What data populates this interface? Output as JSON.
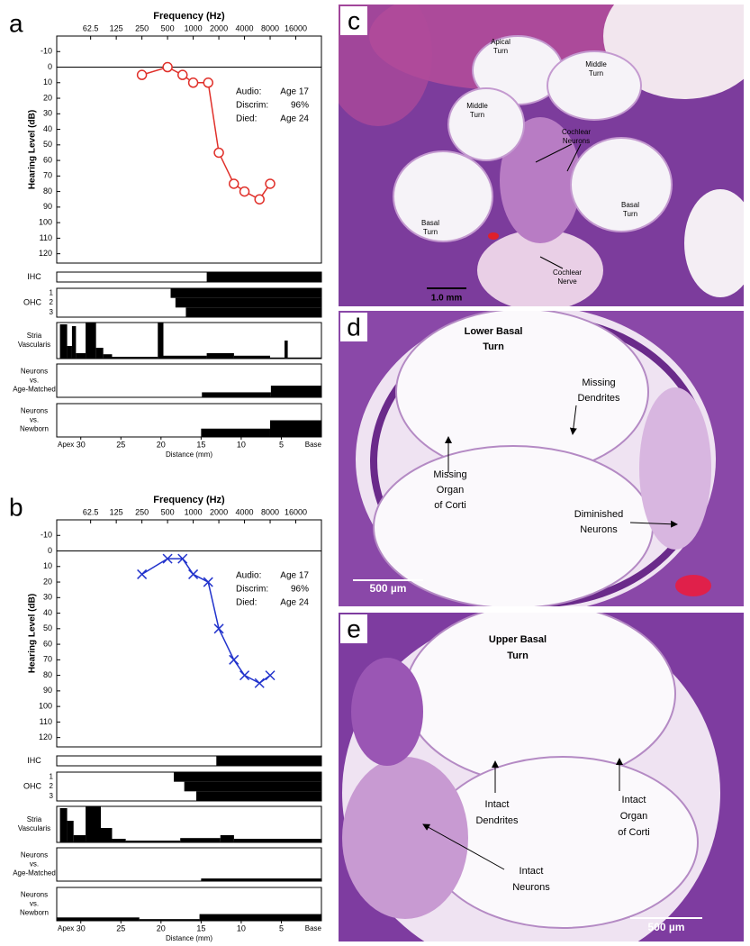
{
  "chart_data": [
    {
      "type": "line",
      "panel_label": "a",
      "x_label": "Frequency (Hz)",
      "y_label": "Hearing Level (dB)",
      "x": [
        250,
        500,
        750,
        1000,
        1500,
        2000,
        3000,
        4000,
        6000,
        8000
      ],
      "series": [
        {
          "color": "#e0302a",
          "marker": "circle",
          "values": [
            5,
            0,
            5,
            10,
            10,
            55,
            75,
            80,
            85,
            75
          ]
        }
      ],
      "xscale": "log",
      "xlim": [
        25,
        32000
      ],
      "xticks": [
        62.5,
        125,
        250,
        500,
        1000,
        2000,
        4000,
        8000,
        16000
      ],
      "ylim": [
        -20,
        126
      ],
      "y_reversed": true,
      "yticks": [
        -10,
        0,
        10,
        20,
        30,
        40,
        50,
        60,
        70,
        80,
        90,
        100,
        110,
        120
      ],
      "hline": 0,
      "annotations": [
        {
          "label": "Audio:",
          "text": "Age 17"
        },
        {
          "label": "Discrim:",
          "text": "96%"
        },
        {
          "label": "Died:",
          "text": "Age 24"
        }
      ],
      "tracks": [
        {
          "label": [
            "IHC"
          ],
          "rows": [
            [
              {
                "from": 14.3,
                "to": 0,
                "value": 100
              }
            ]
          ]
        },
        {
          "label": [
            "OHC"
          ],
          "row_labels": [
            "1",
            "2",
            "3"
          ],
          "rows": [
            [
              {
                "from": 18.8,
                "to": 0,
                "value": 100
              }
            ],
            [
              {
                "from": 18.2,
                "to": 0,
                "value": 100
              }
            ],
            [
              {
                "from": 16.9,
                "to": 0,
                "value": 100
              }
            ]
          ]
        },
        {
          "label": [
            "Stria",
            "Vascularis"
          ],
          "rows": [
            [
              {
                "from": 32.6,
                "to": 31.7,
                "value": 95
              },
              {
                "from": 31.7,
                "to": 31.1,
                "value": 35
              },
              {
                "from": 31.1,
                "to": 30.6,
                "value": 90
              },
              {
                "from": 30.6,
                "to": 29.4,
                "value": 15
              },
              {
                "from": 29.4,
                "to": 28.1,
                "value": 100
              },
              {
                "from": 28.1,
                "to": 27.2,
                "value": 30
              },
              {
                "from": 27.2,
                "to": 26.1,
                "value": 12
              },
              {
                "from": 26.1,
                "to": 20.4,
                "value": 5
              },
              {
                "from": 20.4,
                "to": 19.7,
                "value": 100
              },
              {
                "from": 19.7,
                "to": 14.3,
                "value": 8
              },
              {
                "from": 14.3,
                "to": 10.9,
                "value": 15
              },
              {
                "from": 10.9,
                "to": 6.4,
                "value": 8
              },
              {
                "from": 6.4,
                "to": 4.6,
                "value": 3
              },
              {
                "from": 4.6,
                "to": 4.2,
                "value": 50
              },
              {
                "from": 4.2,
                "to": 0,
                "value": 3
              }
            ]
          ]
        },
        {
          "label": [
            "Neurons",
            "vs.",
            "Age-Matched"
          ],
          "rows": [
            [
              {
                "from": 14.9,
                "to": 6.3,
                "value": 15
              },
              {
                "from": 6.3,
                "to": 0,
                "value": 35
              }
            ]
          ]
        },
        {
          "label": [
            "Neurons",
            "vs.",
            "Newborn"
          ],
          "rows": [
            [
              {
                "from": 15,
                "to": 6.4,
                "value": 25
              },
              {
                "from": 6.4,
                "to": 0,
                "value": 50
              }
            ]
          ]
        }
      ],
      "distance_axis": {
        "label": "Distance (mm)",
        "xlim": [
          33,
          0
        ],
        "xticks": [
          30,
          25,
          20,
          15,
          10,
          5
        ],
        "start_label": "Apex",
        "end_label": "Base"
      }
    },
    {
      "type": "line",
      "panel_label": "b",
      "x_label": "Frequency (Hz)",
      "y_label": "Hearing Level (dB)",
      "x": [
        250,
        500,
        750,
        1000,
        1500,
        2000,
        3000,
        4000,
        6000,
        8000
      ],
      "series": [
        {
          "color": "#2233cc",
          "marker": "x",
          "values": [
            15,
            5,
            5,
            15,
            20,
            50,
            70,
            80,
            85,
            80
          ]
        }
      ],
      "xscale": "log",
      "xlim": [
        25,
        32000
      ],
      "xticks": [
        62.5,
        125,
        250,
        500,
        1000,
        2000,
        4000,
        8000,
        16000
      ],
      "ylim": [
        -20,
        126
      ],
      "y_reversed": true,
      "yticks": [
        -10,
        0,
        10,
        20,
        30,
        40,
        50,
        60,
        70,
        80,
        90,
        100,
        110,
        120
      ],
      "hline": 0,
      "annotations": [
        {
          "label": "Audio:",
          "text": "Age 17"
        },
        {
          "label": "Discrim:",
          "text": "96%"
        },
        {
          "label": "Died:",
          "text": "Age 24"
        }
      ],
      "tracks": [
        {
          "label": [
            "IHC"
          ],
          "rows": [
            [
              {
                "from": 13.1,
                "to": 0,
                "value": 100
              }
            ]
          ]
        },
        {
          "label": [
            "OHC"
          ],
          "row_labels": [
            "1",
            "2",
            "3"
          ],
          "rows": [
            [
              {
                "from": 18.4,
                "to": 0,
                "value": 100
              }
            ],
            [
              {
                "from": 17.1,
                "to": 0,
                "value": 100
              }
            ],
            [
              {
                "from": 15.6,
                "to": 0,
                "value": 100
              }
            ]
          ]
        },
        {
          "label": [
            "Stria",
            "Vascularis"
          ],
          "rows": [
            [
              {
                "from": 32.6,
                "to": 31.7,
                "value": 95
              },
              {
                "from": 31.7,
                "to": 30.9,
                "value": 60
              },
              {
                "from": 30.9,
                "to": 29.4,
                "value": 20
              },
              {
                "from": 29.4,
                "to": 27.5,
                "value": 100
              },
              {
                "from": 27.5,
                "to": 26.1,
                "value": 40
              },
              {
                "from": 26.1,
                "to": 24.4,
                "value": 10
              },
              {
                "from": 24.4,
                "to": 17.6,
                "value": 5
              },
              {
                "from": 17.6,
                "to": 12.6,
                "value": 12
              },
              {
                "from": 12.6,
                "to": 10.9,
                "value": 20
              },
              {
                "from": 10.9,
                "to": 0,
                "value": 10
              }
            ]
          ]
        },
        {
          "label": [
            "Neurons",
            "vs.",
            "Age-Matched"
          ],
          "rows": [
            [
              {
                "from": 15,
                "to": 0,
                "value": 8
              }
            ]
          ]
        },
        {
          "label": [
            "Neurons",
            "vs.",
            "Newborn"
          ],
          "rows": [
            [
              {
                "from": 33,
                "to": 22.7,
                "value": 10
              },
              {
                "from": 22.7,
                "to": 15.2,
                "value": 5
              },
              {
                "from": 15.2,
                "to": 0,
                "value": 20
              }
            ]
          ]
        }
      ],
      "distance_axis": {
        "label": "Distance (mm)",
        "xlim": [
          33,
          0
        ],
        "xticks": [
          30,
          25,
          20,
          15,
          10,
          5
        ],
        "start_label": "Apex",
        "end_label": "Base"
      }
    }
  ],
  "images": [
    {
      "panel_label": "c",
      "labels": [
        [
          "Apical",
          "Turn"
        ],
        [
          "Middle",
          "Turn"
        ],
        [
          "Middle",
          "Turn"
        ],
        [
          "Cochlear",
          "Neurons"
        ],
        [
          "Basal",
          "Turn"
        ],
        [
          "Basal",
          "Turn"
        ],
        [
          "Cochlear",
          "Nerve"
        ]
      ],
      "scale_bar": "1.0 mm"
    },
    {
      "panel_label": "d",
      "labels": [
        [
          "Lower Basal",
          "Turn"
        ],
        [
          "Missing",
          "Dendrites"
        ],
        [
          "Missing",
          "Organ",
          "of Corti"
        ],
        [
          "Diminished",
          "Neurons"
        ]
      ],
      "scale_bar": "500 µm"
    },
    {
      "panel_label": "e",
      "labels": [
        [
          "Upper Basal",
          "Turn"
        ],
        [
          "Intact",
          "Dendrites"
        ],
        [
          "Intact",
          "Organ",
          "of Corti"
        ],
        [
          "Intact",
          "Neurons"
        ]
      ],
      "scale_bar": "500 µm"
    }
  ]
}
